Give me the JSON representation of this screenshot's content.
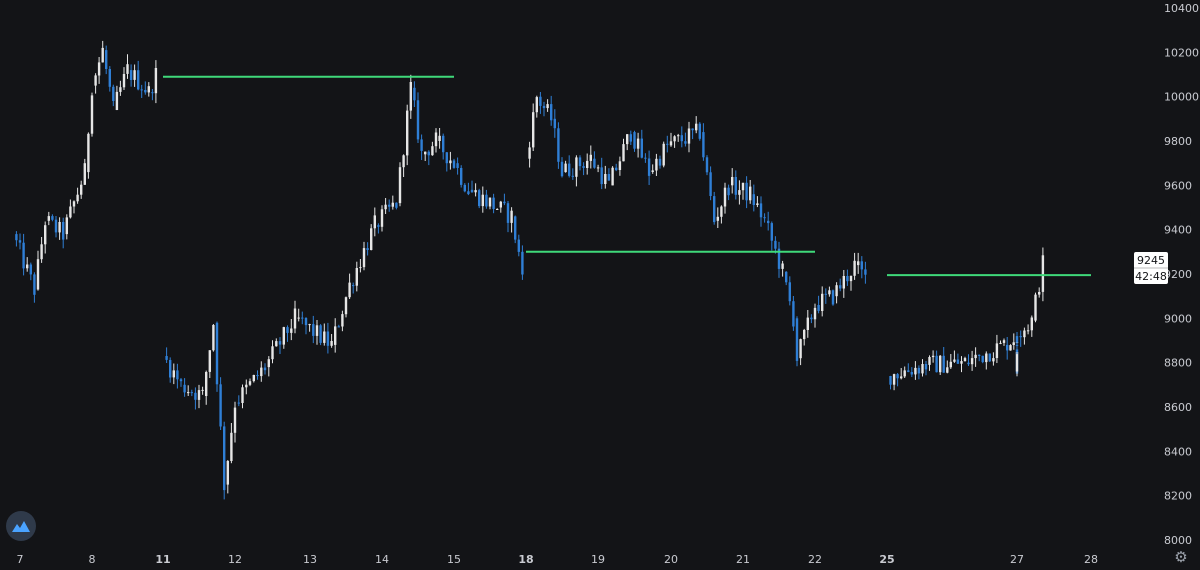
{
  "colors": {
    "background": "#131417",
    "up_candle": "#e6e6e6",
    "down_candle": "#2f7fd6",
    "level_line": "#3fd97a",
    "axis_text": "#c9cbd1"
  },
  "price_tag": {
    "price": "9245",
    "countdown": "42:48"
  },
  "icons": {
    "logo": "logo-icon",
    "settings": "gear-icon"
  },
  "chart_data": {
    "type": "candlestick",
    "title": "",
    "xlabel": "",
    "ylabel": "",
    "ylim": [
      8000,
      10400
    ],
    "y_ticks": [
      8000,
      8200,
      8400,
      8600,
      8800,
      9000,
      9200,
      9400,
      9600,
      9800,
      10000,
      10200,
      10400
    ],
    "x_ticks": [
      {
        "label": "7",
        "day": 7,
        "bold": false
      },
      {
        "label": "8",
        "day": 8,
        "bold": false
      },
      {
        "label": "11",
        "day": 11,
        "bold": true
      },
      {
        "label": "12",
        "day": 12,
        "bold": false
      },
      {
        "label": "13",
        "day": 13,
        "bold": false
      },
      {
        "label": "14",
        "day": 14,
        "bold": false
      },
      {
        "label": "15",
        "day": 15,
        "bold": false
      },
      {
        "label": "18",
        "day": 18,
        "bold": true
      },
      {
        "label": "19",
        "day": 19,
        "bold": false
      },
      {
        "label": "20",
        "day": 20,
        "bold": false
      },
      {
        "label": "21",
        "day": 21,
        "bold": false
      },
      {
        "label": "22",
        "day": 22,
        "bold": false
      },
      {
        "label": "25",
        "day": 25,
        "bold": true
      },
      {
        "label": "27",
        "day": 27,
        "bold": false
      },
      {
        "label": "28",
        "day": 28,
        "bold": false
      }
    ],
    "grid": false,
    "last_price": 9245,
    "series": [
      {
        "day": 6.9,
        "price": 9380
      },
      {
        "day": 7.2,
        "price": 9130
      },
      {
        "day": 7.35,
        "price": 9440
      },
      {
        "day": 7.6,
        "price": 9380
      },
      {
        "day": 7.9,
        "price": 9660
      },
      {
        "day": 8.0,
        "price": 10050
      },
      {
        "day": 8.15,
        "price": 10210
      },
      {
        "day": 8.3,
        "price": 9940
      },
      {
        "day": 8.5,
        "price": 10120
      },
      {
        "day": 8.8,
        "price": 10020
      },
      {
        "day": 8.9,
        "price": 10100
      },
      {
        "day": 11.0,
        "price": 8830
      },
      {
        "day": 11.25,
        "price": 8700
      },
      {
        "day": 11.55,
        "price": 8650
      },
      {
        "day": 11.7,
        "price": 8980
      },
      {
        "day": 11.85,
        "price": 8250
      },
      {
        "day": 12.0,
        "price": 8620
      },
      {
        "day": 12.4,
        "price": 8780
      },
      {
        "day": 12.8,
        "price": 9000
      },
      {
        "day": 13.3,
        "price": 8880
      },
      {
        "day": 13.55,
        "price": 9150
      },
      {
        "day": 13.9,
        "price": 9420
      },
      {
        "day": 14.2,
        "price": 9520
      },
      {
        "day": 14.4,
        "price": 10040
      },
      {
        "day": 14.55,
        "price": 9740
      },
      {
        "day": 14.75,
        "price": 9800
      },
      {
        "day": 15.0,
        "price": 9700
      },
      {
        "day": 15.2,
        "price": 9580
      },
      {
        "day": 15.6,
        "price": 9500
      },
      {
        "day": 15.8,
        "price": 9460
      },
      {
        "day": 15.95,
        "price": 9200
      },
      {
        "day": 18.0,
        "price": 9720
      },
      {
        "day": 18.15,
        "price": 10000
      },
      {
        "day": 18.35,
        "price": 9900
      },
      {
        "day": 18.5,
        "price": 9660
      },
      {
        "day": 18.9,
        "price": 9720
      },
      {
        "day": 19.15,
        "price": 9600
      },
      {
        "day": 19.45,
        "price": 9840
      },
      {
        "day": 19.7,
        "price": 9660
      },
      {
        "day": 19.95,
        "price": 9780
      },
      {
        "day": 20.4,
        "price": 9840
      },
      {
        "day": 20.6,
        "price": 9440
      },
      {
        "day": 20.8,
        "price": 9600
      },
      {
        "day": 21.1,
        "price": 9560
      },
      {
        "day": 21.3,
        "price": 9440
      },
      {
        "day": 21.55,
        "price": 9210
      },
      {
        "day": 21.7,
        "price": 9000
      },
      {
        "day": 21.75,
        "price": 8820
      },
      {
        "day": 22.0,
        "price": 9060
      },
      {
        "day": 22.25,
        "price": 9100
      },
      {
        "day": 22.55,
        "price": 9240
      },
      {
        "day": 22.7,
        "price": 9180
      },
      {
        "day": 25.0,
        "price": 8740
      },
      {
        "day": 25.3,
        "price": 8790
      },
      {
        "day": 25.6,
        "price": 8800
      },
      {
        "day": 25.9,
        "price": 8880
      },
      {
        "day": 26.1,
        "price": 8920
      },
      {
        "day": 26.3,
        "price": 8860
      },
      {
        "day": 26.55,
        "price": 8760
      },
      {
        "day": 26.8,
        "price": 8880
      },
      {
        "day": 27.0,
        "price": 8920
      },
      {
        "day": 27.2,
        "price": 8990
      },
      {
        "day": 27.35,
        "price": 9245
      }
    ],
    "horizontal_levels": [
      {
        "price": 10090,
        "from_day": 10.95,
        "to_day": 15.0
      },
      {
        "price": 9300,
        "from_day": 17.95,
        "to_day": 22.0
      },
      {
        "price": 9195,
        "from_day": 24.95,
        "to_day": 28.0
      }
    ]
  }
}
